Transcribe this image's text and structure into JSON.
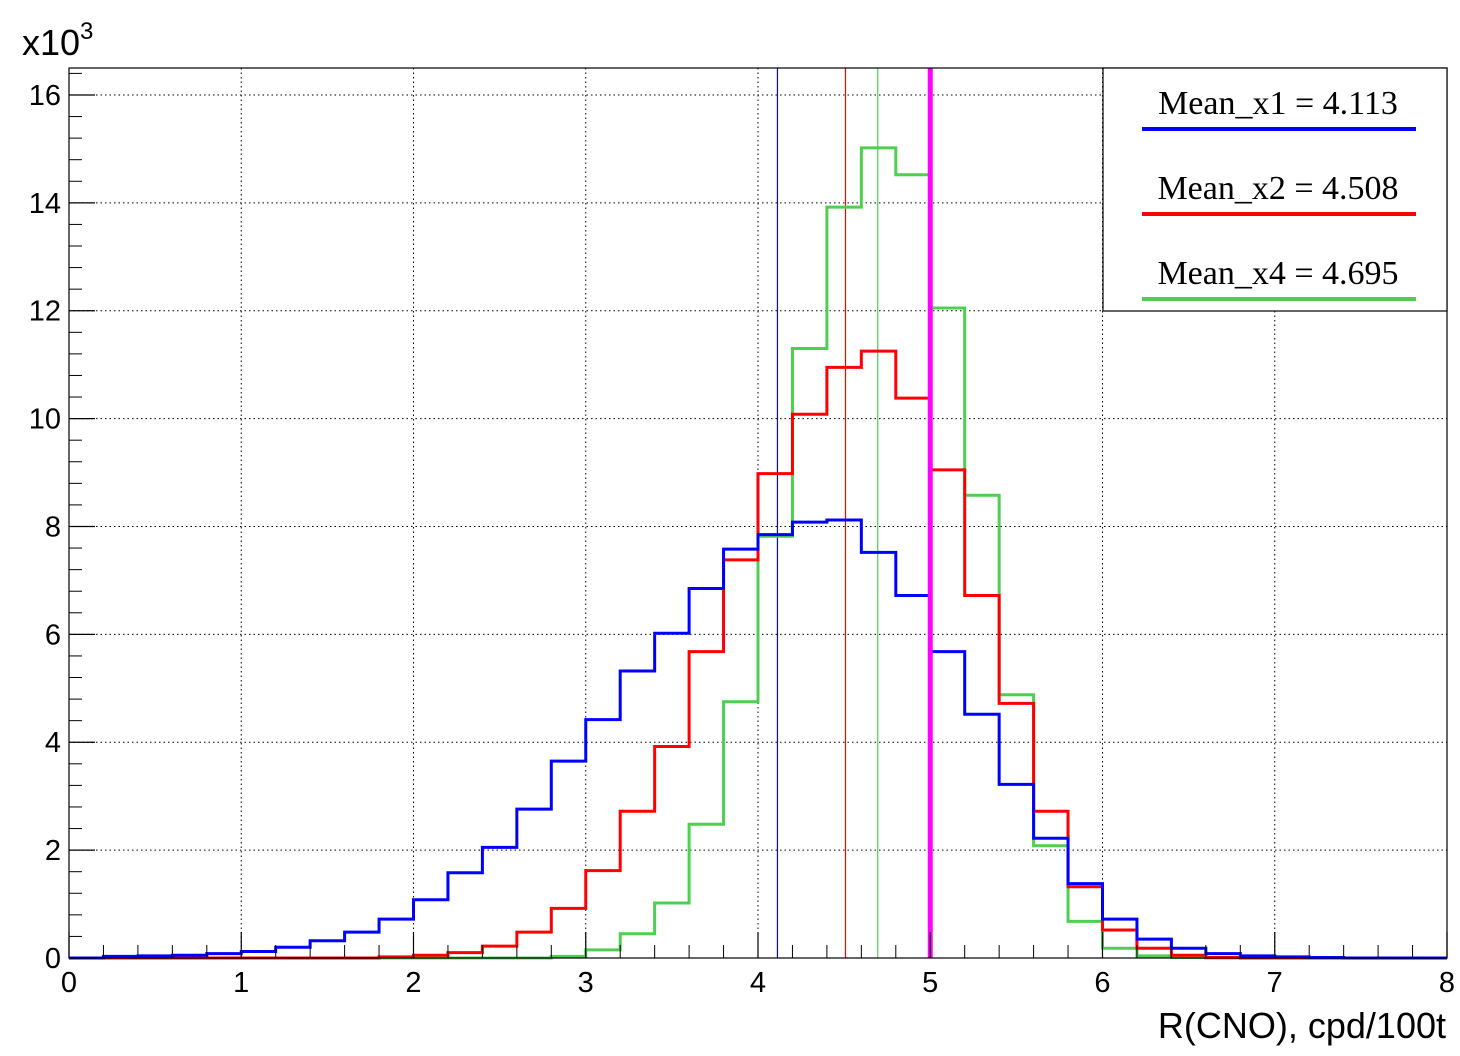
{
  "chart_data": {
    "type": "histogram",
    "xlabel": "R(CNO), cpd/100t",
    "y_multiplier_label": "x10",
    "y_multiplier_exponent": "3",
    "xlim": [
      0,
      8
    ],
    "ylim": [
      0,
      16.5
    ],
    "x_ticks": [
      "0",
      "1",
      "2",
      "3",
      "4",
      "5",
      "6",
      "7",
      "8"
    ],
    "y_ticks": [
      "0",
      "2",
      "4",
      "6",
      "8",
      "10",
      "12",
      "14",
      "16"
    ],
    "grid": true,
    "legend_position": "top-right",
    "bin_edges": [
      0.2,
      0.4,
      0.6,
      0.8,
      1.0,
      1.2,
      1.4,
      1.6,
      1.8,
      2.0,
      2.2,
      2.4,
      2.6,
      2.8,
      3.0,
      3.2,
      3.4,
      3.6,
      3.8,
      4.0,
      4.2,
      4.4,
      4.6,
      4.8,
      5.0,
      5.2,
      5.4,
      5.6,
      5.8,
      6.0,
      6.2,
      6.4,
      6.6,
      6.8,
      7.0,
      7.2,
      7.4,
      7.6,
      7.8,
      8.0
    ],
    "series": [
      {
        "legend": "Mean_x1 = 4.113",
        "color": "#0000ff",
        "mean": 4.113,
        "values": [
          0.03,
          0.04,
          0.05,
          0.08,
          0.12,
          0.2,
          0.32,
          0.48,
          0.72,
          1.08,
          1.58,
          2.05,
          2.76,
          3.65,
          4.42,
          5.32,
          6.02,
          6.85,
          7.58,
          7.85,
          8.08,
          8.12,
          7.52,
          6.72,
          5.68,
          4.52,
          3.22,
          2.22,
          1.38,
          0.72,
          0.35,
          0.18,
          0.08,
          0.04,
          0.02,
          0.01,
          0.0,
          0.0,
          0.0
        ]
      },
      {
        "legend": "Mean_x2 = 4.508",
        "color": "#ff0000",
        "mean": 4.508,
        "values": [
          0.0,
          0.0,
          0.0,
          0.0,
          0.0,
          0.0,
          0.0,
          0.0,
          0.02,
          0.05,
          0.1,
          0.22,
          0.48,
          0.92,
          1.62,
          2.72,
          3.92,
          5.68,
          7.38,
          8.98,
          10.08,
          10.95,
          11.25,
          10.38,
          9.05,
          6.72,
          4.72,
          2.72,
          1.32,
          0.52,
          0.18,
          0.05,
          0.01,
          0.0,
          0.0,
          0.0,
          0.0,
          0.0,
          0.0
        ]
      },
      {
        "legend": "Mean_x4 = 4.695",
        "color": "#4fcf4f",
        "mean": 4.695,
        "values": [
          0.0,
          0.0,
          0.0,
          0.0,
          0.0,
          0.0,
          0.0,
          0.0,
          0.0,
          0.0,
          0.0,
          0.0,
          0.0,
          0.03,
          0.15,
          0.45,
          1.02,
          2.48,
          4.75,
          7.82,
          11.3,
          13.92,
          15.02,
          14.52,
          12.05,
          8.58,
          4.88,
          2.08,
          0.68,
          0.18,
          0.04,
          0.01,
          0.0,
          0.0,
          0.0,
          0.0,
          0.0,
          0.0,
          0.0
        ]
      }
    ],
    "reference_line": {
      "x": 5.0,
      "color": "#ff00ff"
    }
  }
}
